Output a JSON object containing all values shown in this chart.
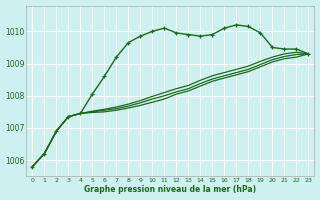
{
  "title": "Graphe pression niveau de la mer (hPa)",
  "bg_color": "#cff0f0",
  "grid_color": "#ffffff",
  "line_color": "#1a6b1a",
  "x_labels": [
    "0",
    "1",
    "2",
    "3",
    "4",
    "5",
    "6",
    "7",
    "8",
    "9",
    "10",
    "11",
    "12",
    "13",
    "14",
    "15",
    "16",
    "17",
    "18",
    "19",
    "20",
    "21",
    "22",
    "23"
  ],
  "ylim": [
    1005.5,
    1010.8
  ],
  "yticks": [
    1006,
    1007,
    1008,
    1009,
    1010
  ],
  "series": [
    [
      1005.8,
      1006.2,
      1006.9,
      1007.35,
      1007.45,
      1008.05,
      1008.6,
      1009.2,
      1009.65,
      1009.85,
      1010.0,
      1010.1,
      1009.95,
      1009.9,
      1009.85,
      1009.9,
      1010.1,
      1010.2,
      1010.15,
      1009.95,
      1009.5,
      1009.45,
      1009.45,
      1009.3
    ],
    [
      1005.8,
      1006.2,
      1006.9,
      1007.35,
      1007.45,
      1007.48,
      1007.5,
      1007.55,
      1007.62,
      1007.7,
      1007.8,
      1007.9,
      1008.05,
      1008.15,
      1008.3,
      1008.45,
      1008.55,
      1008.65,
      1008.75,
      1008.9,
      1009.05,
      1009.15,
      1009.2,
      1009.3
    ],
    [
      1005.8,
      1006.2,
      1006.9,
      1007.35,
      1007.45,
      1007.5,
      1007.55,
      1007.6,
      1007.68,
      1007.78,
      1007.9,
      1008.0,
      1008.12,
      1008.22,
      1008.38,
      1008.52,
      1008.62,
      1008.72,
      1008.82,
      1008.97,
      1009.12,
      1009.22,
      1009.28,
      1009.3
    ],
    [
      1005.8,
      1006.2,
      1006.9,
      1007.35,
      1007.45,
      1007.52,
      1007.58,
      1007.65,
      1007.74,
      1007.85,
      1007.98,
      1008.1,
      1008.22,
      1008.32,
      1008.48,
      1008.62,
      1008.72,
      1008.82,
      1008.92,
      1009.07,
      1009.2,
      1009.3,
      1009.35,
      1009.3
    ]
  ]
}
